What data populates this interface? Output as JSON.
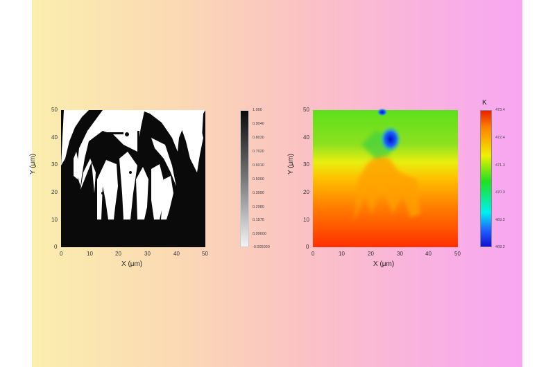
{
  "left_panel": {
    "x_label": "X (μm)",
    "y_label": "Y (μm)",
    "x_ticks": [
      "0",
      "10",
      "20",
      "30",
      "40",
      "50"
    ],
    "y_ticks": [
      "0",
      "10",
      "20",
      "30",
      "40",
      "50"
    ],
    "colorbar": {
      "colors": [
        "#ffffff",
        "#000000"
      ],
      "ticks": [
        "1.000",
        "0.9040",
        "0.8030",
        "0.7020",
        "0.6010",
        "0.5000",
        "0.3990",
        "0.2980",
        "0.1970",
        "0.09600",
        "-0.005000"
      ]
    }
  },
  "right_panel": {
    "x_label": "X (μm)",
    "y_label": "Y (μm)",
    "x_ticks": [
      "0",
      "10",
      "20",
      "30",
      "40",
      "50"
    ],
    "y_ticks": [
      "0",
      "10",
      "20",
      "30",
      "40",
      "50"
    ],
    "colorbar": {
      "unit": "K",
      "colors": [
        "#0000e0",
        "#00e0ff",
        "#00e000",
        "#f0f000",
        "#ff2000"
      ],
      "ticks": [
        "473.4",
        "472.4",
        "471.3",
        "470.3",
        "469.2",
        "468.2"
      ]
    }
  }
}
